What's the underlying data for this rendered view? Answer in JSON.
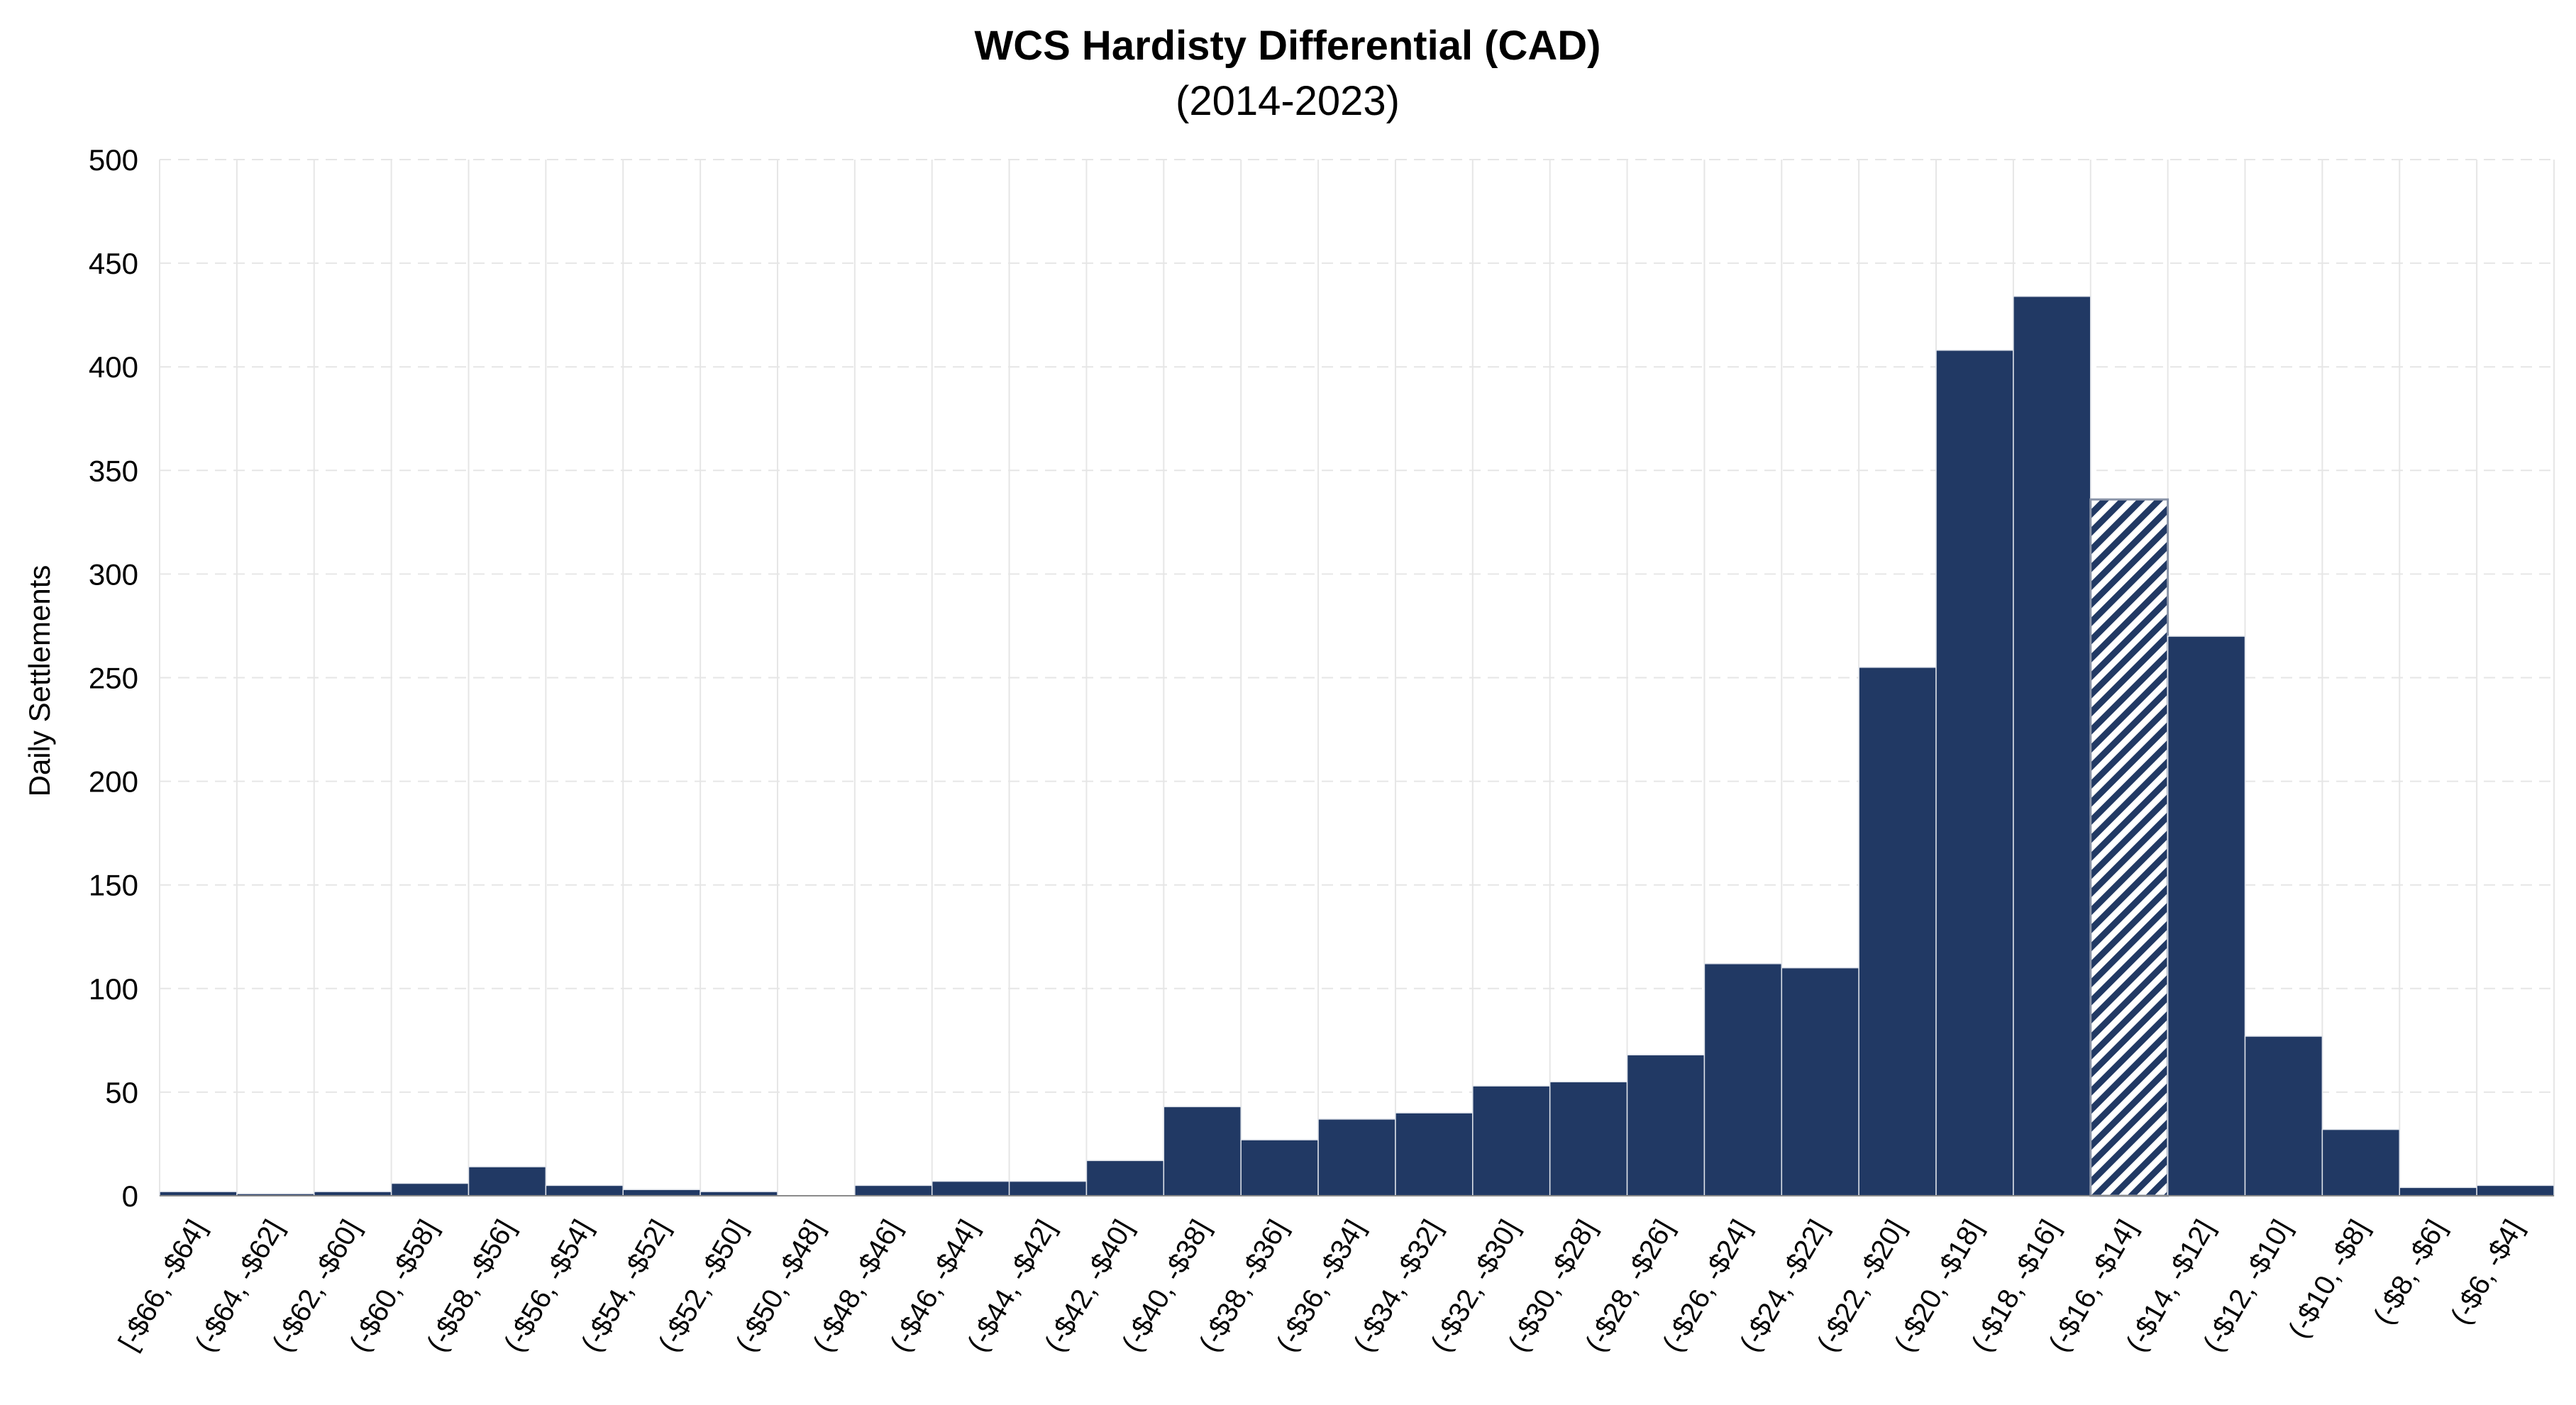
{
  "chart_data": {
    "type": "bar",
    "title": "WCS Hardisty Differential (CAD)",
    "subtitle": "(2014-2023)",
    "xlabel": "",
    "ylabel": "Daily Settlements",
    "ylim": [
      0,
      500
    ],
    "yticks": [
      0,
      50,
      100,
      150,
      200,
      250,
      300,
      350,
      400,
      450,
      500
    ],
    "grid": true,
    "legend": "none",
    "colors": {
      "bar": "#213964",
      "highlight_hatch": "#213964",
      "grid": "#e6e6e6"
    },
    "highlight_category": "(-$16, -$14]",
    "categories": [
      "[-$66, -$64]",
      "(-$64, -$62]",
      "(-$62, -$60]",
      "(-$60, -$58]",
      "(-$58, -$56]",
      "(-$56, -$54]",
      "(-$54, -$52]",
      "(-$52, -$50]",
      "(-$50, -$48]",
      "(-$48, -$46]",
      "(-$46, -$44]",
      "(-$44, -$42]",
      "(-$42, -$40]",
      "(-$40, -$38]",
      "(-$38, -$36]",
      "(-$36, -$34]",
      "(-$34, -$32]",
      "(-$32, -$30]",
      "(-$30, -$28]",
      "(-$28, -$26]",
      "(-$26, -$24]",
      "(-$24, -$22]",
      "(-$22, -$20]",
      "(-$20, -$18]",
      "(-$18, -$16]",
      "(-$16, -$14]",
      "(-$14, -$12]",
      "(-$12, -$10]",
      "(-$10, -$8]",
      "(-$8, -$6]",
      "(-$6, -$4]"
    ],
    "values": [
      2,
      1,
      2,
      6,
      14,
      5,
      3,
      2,
      0,
      5,
      7,
      7,
      17,
      43,
      27,
      37,
      40,
      53,
      55,
      68,
      112,
      110,
      255,
      408,
      434,
      336,
      270,
      77,
      32,
      4,
      5
    ]
  }
}
